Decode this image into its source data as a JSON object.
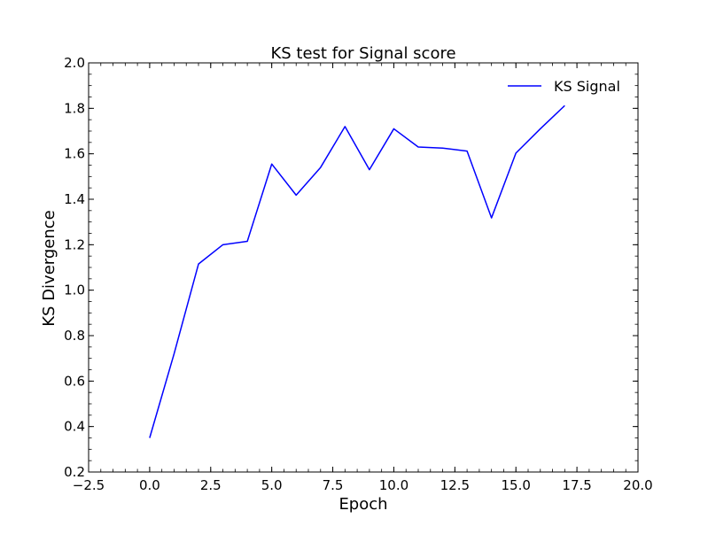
{
  "chart_data": {
    "type": "line",
    "title": "KS test for Signal score",
    "xlabel": "Epoch",
    "ylabel": "KS Divergence",
    "xlim": [
      -2.5,
      20.0
    ],
    "ylim": [
      0.2,
      2.0
    ],
    "xticks": [
      -2.5,
      0.0,
      2.5,
      5.0,
      7.5,
      10.0,
      12.5,
      15.0,
      17.5,
      20.0
    ],
    "xtick_labels": [
      "−2.5",
      "0.0",
      "2.5",
      "5.0",
      "7.5",
      "10.0",
      "12.5",
      "15.0",
      "17.5",
      "20.0"
    ],
    "yticks": [
      0.2,
      0.4,
      0.6,
      0.8,
      1.0,
      1.2,
      1.4,
      1.6,
      1.8,
      2.0
    ],
    "ytick_labels": [
      "0.2",
      "0.4",
      "0.6",
      "0.8",
      "1.0",
      "1.2",
      "1.4",
      "1.6",
      "1.8",
      "2.0"
    ],
    "grid": false,
    "legend_position": "top-right",
    "series": [
      {
        "name": "KS Signal",
        "color": "#0000ff",
        "x": [
          0,
          1,
          2,
          3,
          4,
          5,
          6,
          7,
          8,
          9,
          10,
          11,
          12,
          13,
          14,
          15,
          16,
          17
        ],
        "y": [
          0.35,
          0.72,
          1.115,
          1.2,
          1.215,
          1.555,
          1.418,
          1.54,
          1.72,
          1.53,
          1.71,
          1.63,
          1.625,
          1.612,
          1.318,
          1.603,
          1.71,
          1.812
        ]
      }
    ]
  }
}
